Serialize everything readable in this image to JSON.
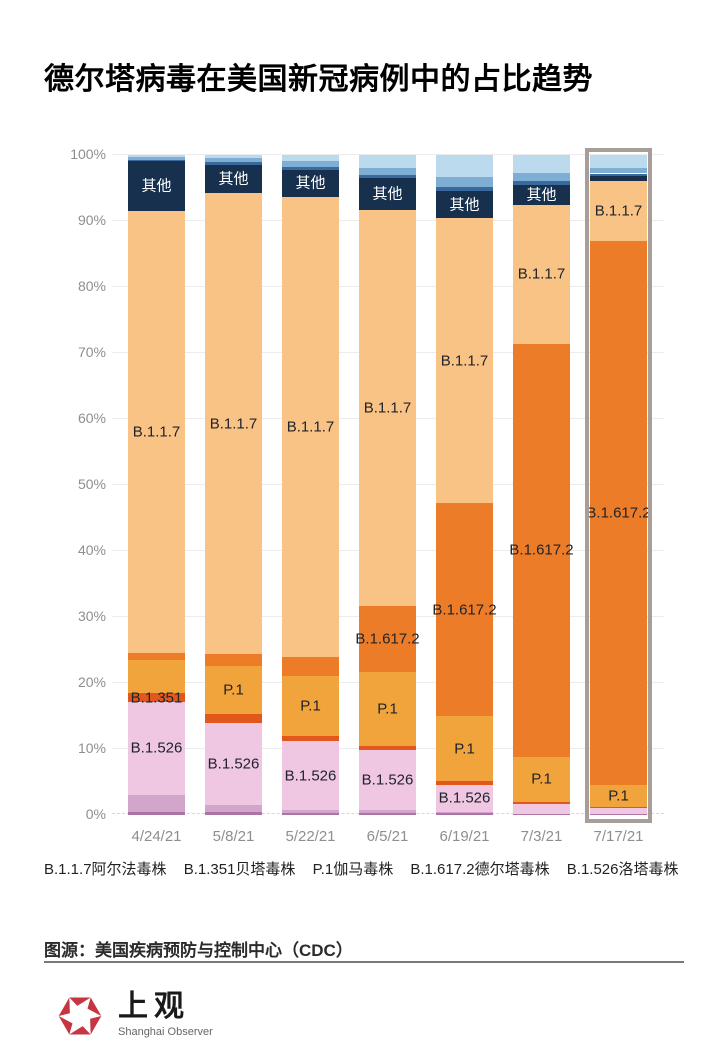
{
  "title": "德尔塔病毒在美国新冠病例中的占比趋势",
  "chart_data": {
    "type": "bar",
    "stacked": true,
    "unit": "percent",
    "title": "德尔塔病毒在美国新冠病例中的占比趋势",
    "categories": [
      "4/24/21",
      "5/8/21",
      "5/22/21",
      "6/5/21",
      "6/19/21",
      "7/3/21",
      "7/17/21"
    ],
    "y_ticks": [
      "0%",
      "10%",
      "20%",
      "30%",
      "40%",
      "50%",
      "60%",
      "70%",
      "80%",
      "90%",
      "100%"
    ],
    "ylim": [
      0,
      100
    ],
    "grid": true,
    "highlighted_category": "7/17/21",
    "highlight_border_color": "#a89e99",
    "label_color_dark": "#20242b",
    "label_color_light": "#ffffff",
    "series": [
      {
        "name": "unlabeled-purple-dark",
        "color": "#ac74a4",
        "values": [
          0.5,
          0.4,
          0.3,
          0.3,
          0.3,
          0.2,
          0.2
        ],
        "show_label": [
          false,
          false,
          false,
          false,
          false,
          false,
          false
        ],
        "light_label": false
      },
      {
        "name": "unlabeled-purple",
        "color": "#d2a6ca",
        "values": [
          2.6,
          1.1,
          0.4,
          0.4,
          0.2,
          0,
          0
        ],
        "show_label": [
          false,
          false,
          false,
          false,
          false,
          false,
          false
        ],
        "light_label": false
      },
      {
        "name": "B.1.526",
        "color": "#efc7e3",
        "values": [
          14.0,
          12.5,
          10.5,
          9.2,
          4.1,
          1.5,
          0.8
        ],
        "show_label": [
          true,
          true,
          true,
          true,
          true,
          false,
          false
        ],
        "light_label": false
      },
      {
        "name": "B.1.351",
        "color": "#e2581c",
        "values": [
          1.4,
          1.3,
          0.8,
          0.5,
          0.5,
          0.3,
          0.2
        ],
        "show_label": [
          true,
          false,
          false,
          false,
          false,
          false,
          false
        ],
        "light_label": false
      },
      {
        "name": "P.1",
        "color": "#f2a43c",
        "values": [
          5.0,
          7.3,
          9.1,
          11.2,
          9.9,
          6.8,
          3.3
        ],
        "show_label": [
          false,
          true,
          true,
          true,
          true,
          true,
          true
        ],
        "light_label": false
      },
      {
        "name": "B.1.617.2",
        "color": "#ec7c28",
        "values": [
          1.0,
          1.8,
          2.8,
          10.0,
          32.2,
          62.6,
          82.5
        ],
        "show_label": [
          false,
          false,
          false,
          true,
          true,
          true,
          true
        ],
        "light_label": false
      },
      {
        "name": "B.1.1.7",
        "color": "#fac386",
        "values": [
          67.0,
          69.8,
          69.8,
          60.1,
          43.3,
          21.1,
          9.1
        ],
        "show_label": [
          true,
          true,
          true,
          true,
          true,
          true,
          true
        ],
        "light_label": false
      },
      {
        "name": "其他",
        "color": "#16304e",
        "values": [
          7.6,
          4.3,
          4.0,
          4.8,
          4.0,
          3.0,
          0.7
        ],
        "show_label": [
          true,
          true,
          true,
          true,
          true,
          true,
          false
        ],
        "light_label": true
      },
      {
        "name": "unlabeled-blue-dark",
        "color": "#3a6a9c",
        "values": [
          0.2,
          0.4,
          0.5,
          0.5,
          0.7,
          0.6,
          0.4
        ],
        "show_label": [
          false,
          false,
          false,
          false,
          false,
          false,
          false
        ],
        "light_label": false
      },
      {
        "name": "unlabeled-blue-mid",
        "color": "#7faed4",
        "values": [
          0.4,
          0.7,
          0.9,
          1.0,
          1.4,
          1.2,
          0.8
        ],
        "show_label": [
          false,
          false,
          false,
          false,
          false,
          false,
          false
        ],
        "light_label": false
      },
      {
        "name": "unlabeled-blue-light",
        "color": "#bbdaee",
        "values": [
          0.3,
          0.4,
          0.9,
          2.0,
          3.4,
          2.7,
          2.0
        ],
        "show_label": [
          false,
          false,
          false,
          false,
          false,
          false,
          false
        ],
        "light_label": false
      }
    ]
  },
  "legend": {
    "items": [
      "B.1.1.7阿尔法毒株",
      "B.1.351贝塔毒株",
      "P.1伽马毒株",
      "B.1.617.2德尔塔毒株",
      "B.1.526洛塔毒株"
    ]
  },
  "source": {
    "label": "图源：美国疾病预防与控制中心（CDC）"
  },
  "footer": {
    "logo_cn": "上观",
    "logo_en": "Shanghai Observer",
    "logo_color": "#c53642"
  }
}
